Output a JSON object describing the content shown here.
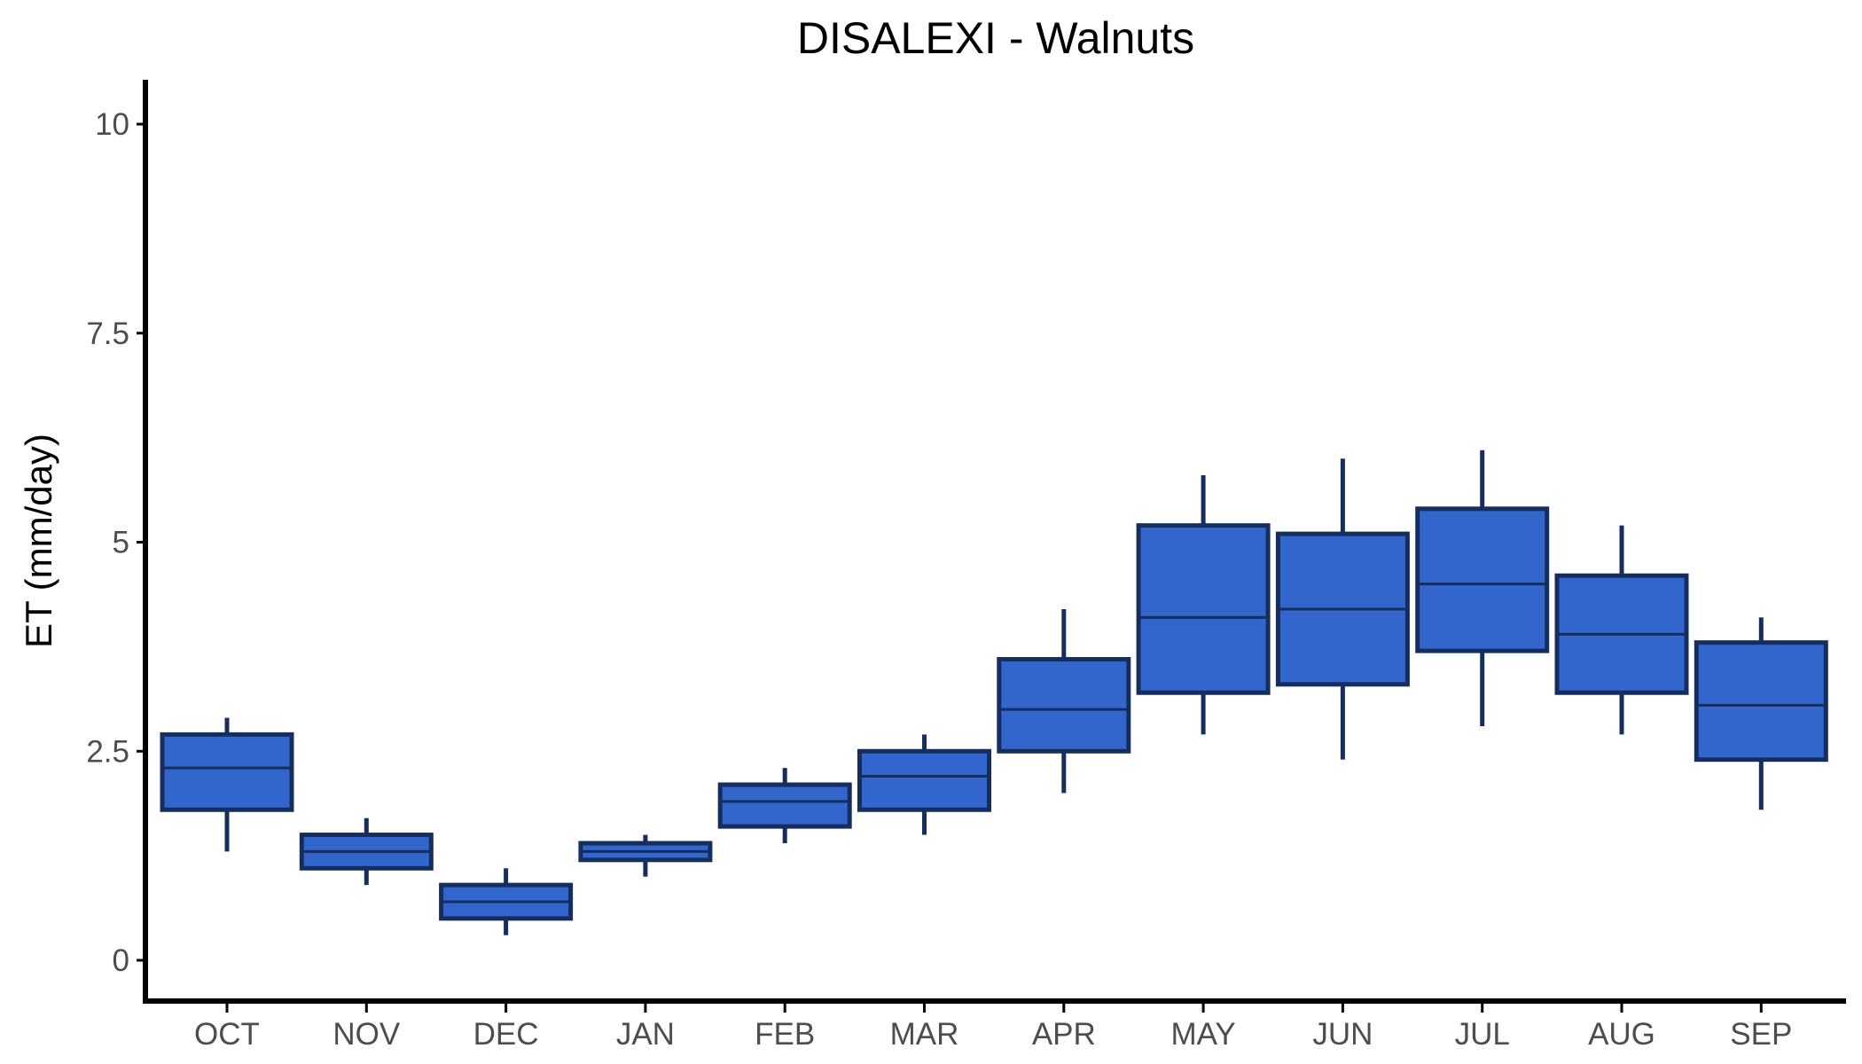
{
  "chart_data": {
    "type": "box",
    "title": "DISALEXI - Walnuts",
    "xlabel": "",
    "ylabel": "ET (mm/day)",
    "ylim": [
      -0.5,
      10.5
    ],
    "yticks": [
      0,
      2.5,
      5,
      7.5,
      10
    ],
    "ytick_labels": [
      "0",
      "2.5",
      "5",
      "7.5",
      "10"
    ],
    "categories": [
      "OCT",
      "NOV",
      "DEC",
      "JAN",
      "FEB",
      "MAR",
      "APR",
      "MAY",
      "JUN",
      "JUL",
      "AUG",
      "SEP"
    ],
    "boxes": [
      {
        "month": "OCT",
        "whisker_low": 1.3,
        "q1": 1.8,
        "median": 2.3,
        "q3": 2.7,
        "whisker_high": 2.9
      },
      {
        "month": "NOV",
        "whisker_low": 0.9,
        "q1": 1.1,
        "median": 1.3,
        "q3": 1.5,
        "whisker_high": 1.7
      },
      {
        "month": "DEC",
        "whisker_low": 0.3,
        "q1": 0.5,
        "median": 0.7,
        "q3": 0.9,
        "whisker_high": 1.1
      },
      {
        "month": "JAN",
        "whisker_low": 1.0,
        "q1": 1.2,
        "median": 1.3,
        "q3": 1.4,
        "whisker_high": 1.5
      },
      {
        "month": "FEB",
        "whisker_low": 1.4,
        "q1": 1.6,
        "median": 1.9,
        "q3": 2.1,
        "whisker_high": 2.3
      },
      {
        "month": "MAR",
        "whisker_low": 1.5,
        "q1": 1.8,
        "median": 2.2,
        "q3": 2.5,
        "whisker_high": 2.7
      },
      {
        "month": "APR",
        "whisker_low": 2.0,
        "q1": 2.5,
        "median": 3.0,
        "q3": 3.6,
        "whisker_high": 4.2
      },
      {
        "month": "MAY",
        "whisker_low": 2.7,
        "q1": 3.2,
        "median": 4.1,
        "q3": 5.2,
        "whisker_high": 5.8
      },
      {
        "month": "JUN",
        "whisker_low": 2.4,
        "q1": 3.3,
        "median": 4.2,
        "q3": 5.1,
        "whisker_high": 6.0
      },
      {
        "month": "JUL",
        "whisker_low": 2.8,
        "q1": 3.7,
        "median": 4.5,
        "q3": 5.4,
        "whisker_high": 6.1
      },
      {
        "month": "AUG",
        "whisker_low": 2.7,
        "q1": 3.2,
        "median": 3.9,
        "q3": 4.6,
        "whisker_high": 5.2
      },
      {
        "month": "SEP",
        "whisker_low": 1.8,
        "q1": 2.4,
        "median": 3.05,
        "q3": 3.8,
        "whisker_high": 4.1
      }
    ],
    "grid": false,
    "legend": "none",
    "colors": {
      "box_fill": "#3366cc",
      "box_outline": "#162e5e",
      "axis": "#000000",
      "tick_label": "#4d4d4d",
      "background": "#ffffff"
    }
  }
}
